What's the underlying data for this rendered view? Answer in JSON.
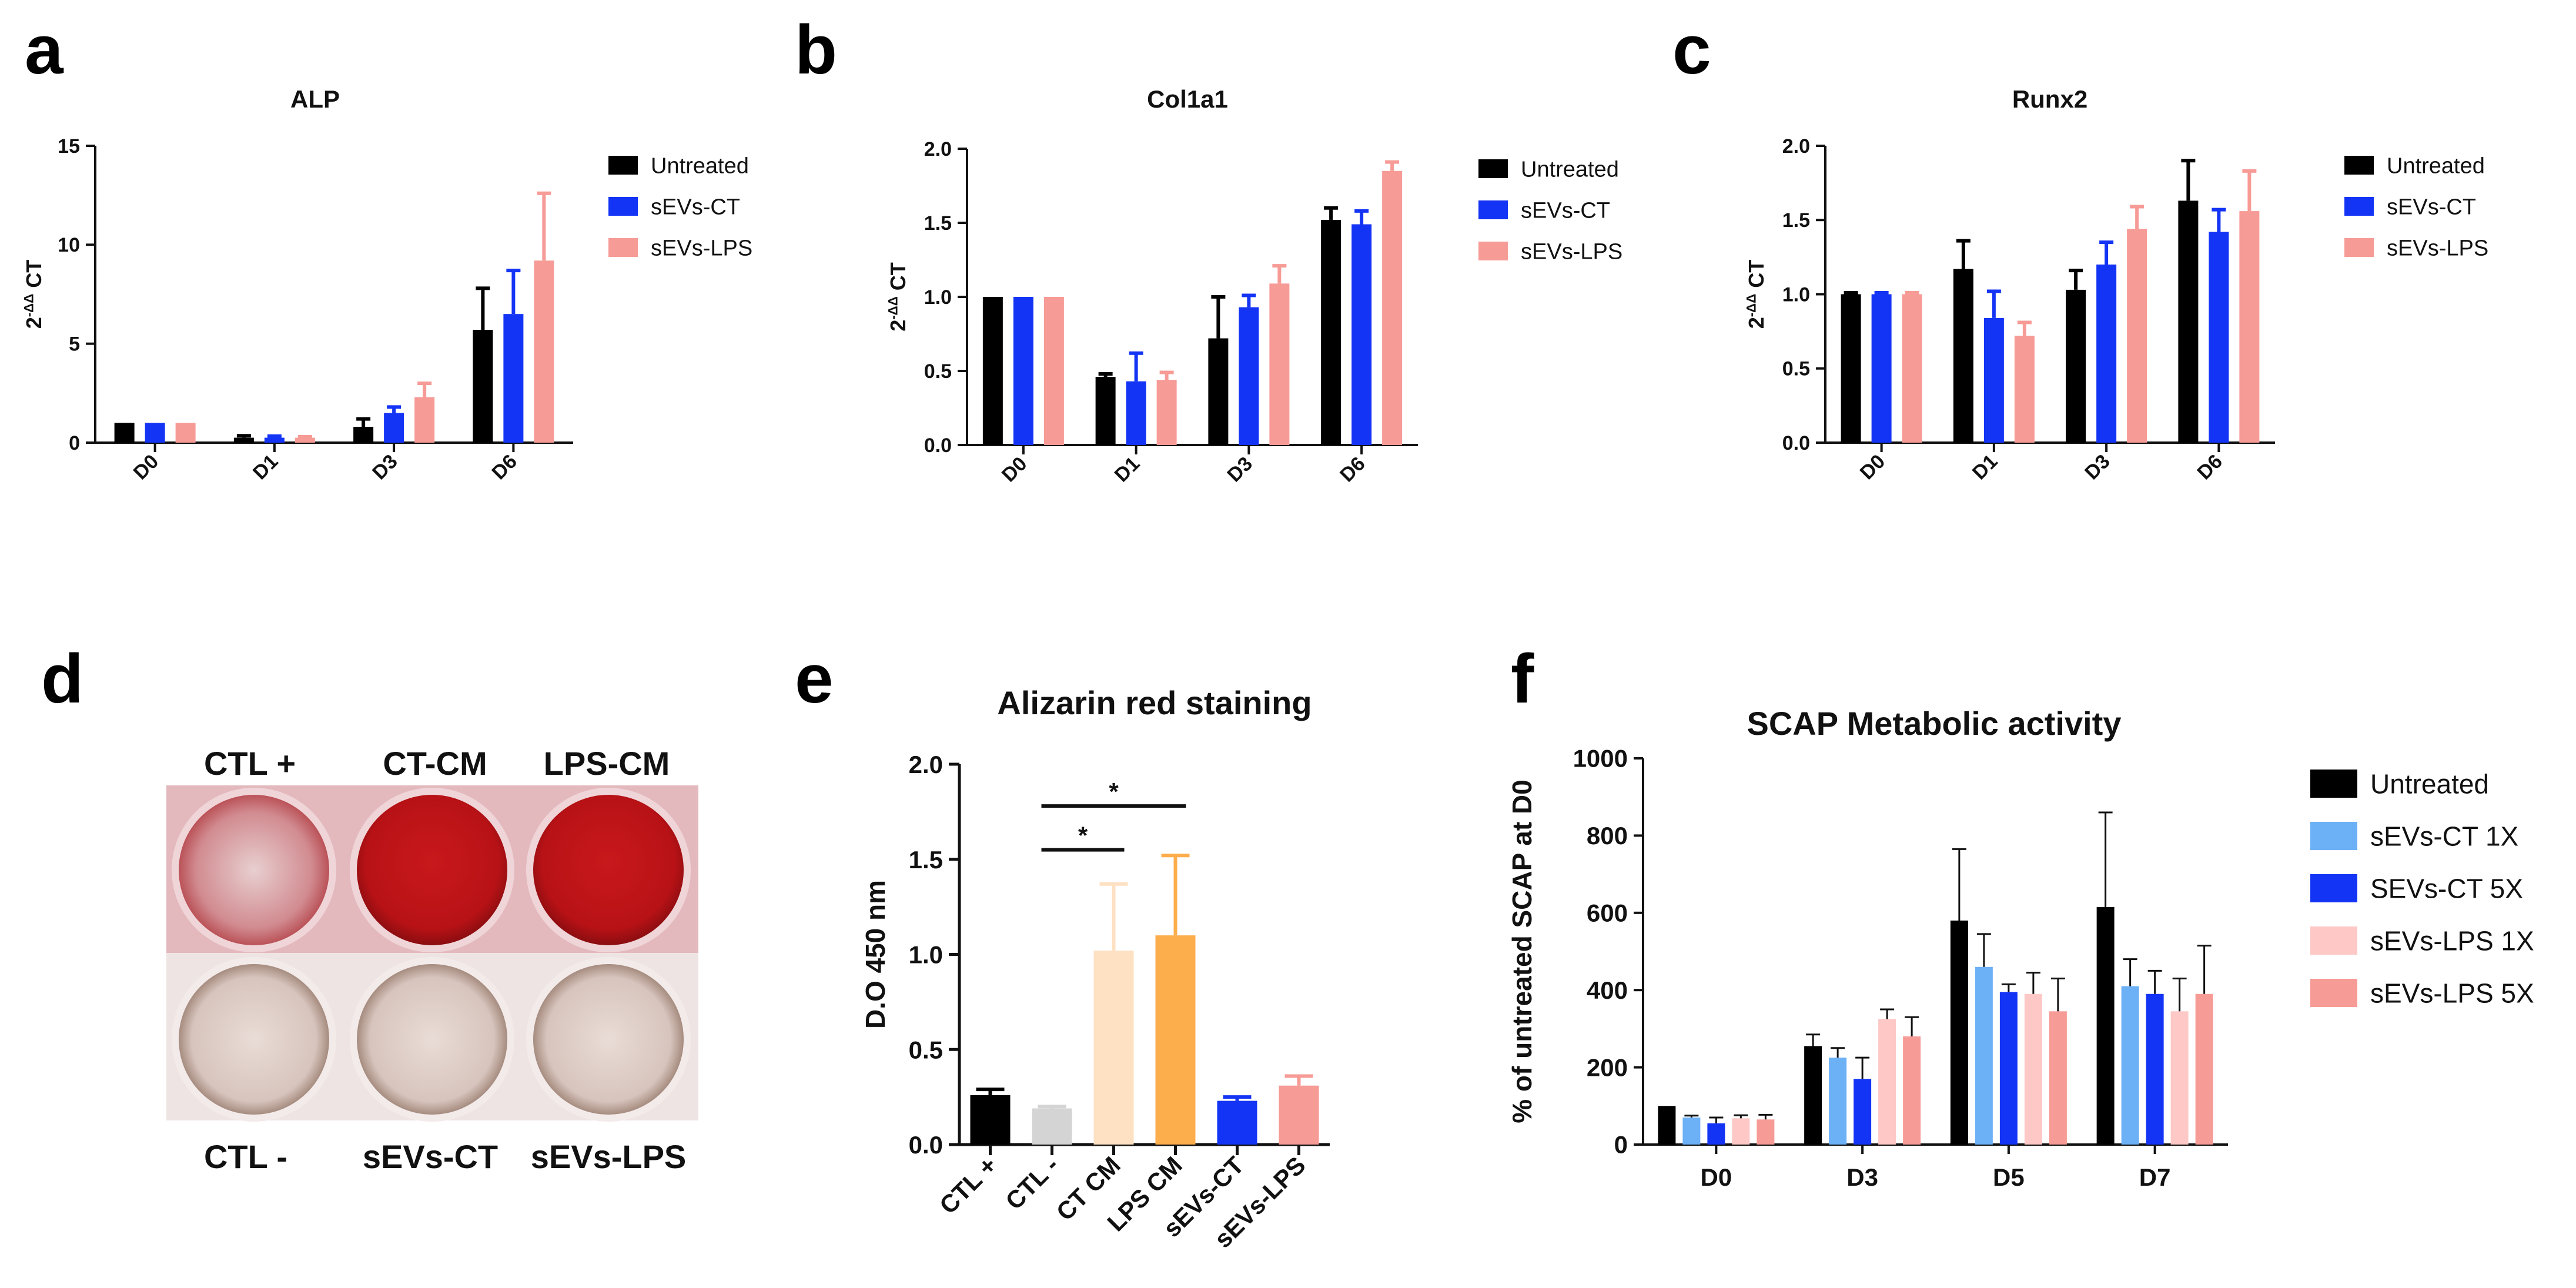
{
  "panels": {
    "a": "a",
    "b": "b",
    "c": "c",
    "d": "d",
    "e": "e",
    "f": "f"
  },
  "chart_data": [
    {
      "id": "a",
      "type": "bar",
      "title": "ALP",
      "ylabel": "2-ΔΔ CT",
      "ylim": [
        0,
        15
      ],
      "yticks": [
        "0",
        "5",
        "10",
        "15"
      ],
      "categories": [
        "D0",
        "D1",
        "D3",
        "D6"
      ],
      "series": [
        {
          "name": "Untreated",
          "color": "#000000",
          "values": [
            1.0,
            0.25,
            0.8,
            5.7
          ],
          "errors": [
            0.0,
            0.1,
            0.4,
            2.1
          ]
        },
        {
          "name": "sEVs-CT",
          "color": "#1434f5",
          "values": [
            1.0,
            0.25,
            1.5,
            6.5
          ],
          "errors": [
            0.0,
            0.08,
            0.3,
            2.2
          ]
        },
        {
          "name": "sEVs-LPS",
          "color": "#f79b96",
          "values": [
            1.0,
            0.25,
            2.3,
            9.2
          ],
          "errors": [
            0.0,
            0.05,
            0.7,
            3.4
          ]
        }
      ]
    },
    {
      "id": "b",
      "type": "bar",
      "title": "Col1a1",
      "ylabel": "2-ΔΔ CT",
      "ylim": [
        0,
        2.0
      ],
      "yticks": [
        "0.0",
        "0.5",
        "1.0",
        "1.5",
        "2.0"
      ],
      "categories": [
        "D0",
        "D1",
        "D3",
        "D6"
      ],
      "series": [
        {
          "name": "Untreated",
          "color": "#000000",
          "values": [
            1.0,
            0.46,
            0.72,
            1.52
          ],
          "errors": [
            0.0,
            0.02,
            0.28,
            0.08
          ]
        },
        {
          "name": "sEVs-CT",
          "color": "#1434f5",
          "values": [
            1.0,
            0.43,
            0.93,
            1.49
          ],
          "errors": [
            0.0,
            0.19,
            0.08,
            0.09
          ]
        },
        {
          "name": "sEVs-LPS",
          "color": "#f79b96",
          "values": [
            1.0,
            0.44,
            1.09,
            1.85
          ],
          "errors": [
            0.0,
            0.05,
            0.12,
            0.06
          ]
        }
      ]
    },
    {
      "id": "c",
      "type": "bar",
      "title": "Runx2",
      "ylabel": "2-ΔΔ CT",
      "ylim": [
        0,
        2.0
      ],
      "yticks": [
        "0.0",
        "0.5",
        "1.0",
        "1.5",
        "2.0"
      ],
      "categories": [
        "D0",
        "D1",
        "D3",
        "D6"
      ],
      "series": [
        {
          "name": "Untreated",
          "color": "#000000",
          "values": [
            1.0,
            1.17,
            1.03,
            1.63
          ],
          "errors": [
            0.01,
            0.19,
            0.13,
            0.27
          ]
        },
        {
          "name": "sEVs-CT",
          "color": "#1434f5",
          "values": [
            1.0,
            0.84,
            1.2,
            1.42
          ],
          "errors": [
            0.01,
            0.18,
            0.15,
            0.15
          ]
        },
        {
          "name": "sEVs-LPS",
          "color": "#f79b96",
          "values": [
            1.0,
            0.72,
            1.44,
            1.56
          ],
          "errors": [
            0.01,
            0.09,
            0.15,
            0.27
          ]
        }
      ]
    },
    {
      "id": "e",
      "type": "bar",
      "title": "Alizarin red staining",
      "ylabel": "D.O 450 nm",
      "ylim": [
        0,
        2.0
      ],
      "yticks": [
        "0.0",
        "0.5",
        "1.0",
        "1.5",
        "2.0"
      ],
      "categories": [
        "CTL +",
        "CTL -",
        "CT CM",
        "LPS CM",
        "sEVs-CT",
        "sEVs-LPS"
      ],
      "values": [
        0.26,
        0.19,
        1.02,
        1.1,
        0.23,
        0.31
      ],
      "errors": [
        0.03,
        0.01,
        0.35,
        0.42,
        0.02,
        0.05
      ],
      "colors": [
        "#000000",
        "#d4d4d4",
        "#fde1c2",
        "#fcad4c",
        "#1434f5",
        "#f79b96"
      ],
      "significance": [
        {
          "from": "CTL -",
          "to": "CT CM",
          "label": "*"
        },
        {
          "from": "CTL -",
          "to": "LPS CM",
          "label": "*"
        }
      ]
    },
    {
      "id": "f",
      "type": "bar",
      "title": "SCAP Metabolic activity",
      "ylabel": "% of untreated SCAP at D0",
      "ylim": [
        0,
        1000
      ],
      "yticks": [
        "0",
        "200",
        "400",
        "600",
        "800",
        "1000"
      ],
      "categories": [
        "D0",
        "D3",
        "D5",
        "D7"
      ],
      "series": [
        {
          "name": "Untreated",
          "color": "#000000",
          "values": [
            100,
            255,
            580,
            615
          ],
          "errors": [
            0,
            30,
            185,
            245
          ]
        },
        {
          "name": "sEVs-CT 1X",
          "color": "#6cb0f6",
          "values": [
            70,
            225,
            460,
            410
          ],
          "errors": [
            5,
            25,
            85,
            70
          ]
        },
        {
          "name": "SEVs-CT 5X",
          "color": "#1434f5",
          "values": [
            55,
            170,
            395,
            390
          ],
          "errors": [
            15,
            55,
            20,
            60
          ]
        },
        {
          "name": "sEVs-LPS 1X",
          "color": "#fdc8c6",
          "values": [
            68,
            325,
            390,
            345
          ],
          "errors": [
            8,
            25,
            55,
            85
          ]
        },
        {
          "name": "sEVs-LPS 5X",
          "color": "#f79b96",
          "values": [
            65,
            280,
            345,
            390
          ],
          "errors": [
            12,
            50,
            85,
            125
          ]
        }
      ]
    }
  ],
  "wells": {
    "top_labels": [
      "CTL +",
      "CT-CM",
      "LPS-CM"
    ],
    "bottom_labels": [
      "CTL -",
      "sEVs-CT",
      "sEVs-LPS"
    ]
  }
}
